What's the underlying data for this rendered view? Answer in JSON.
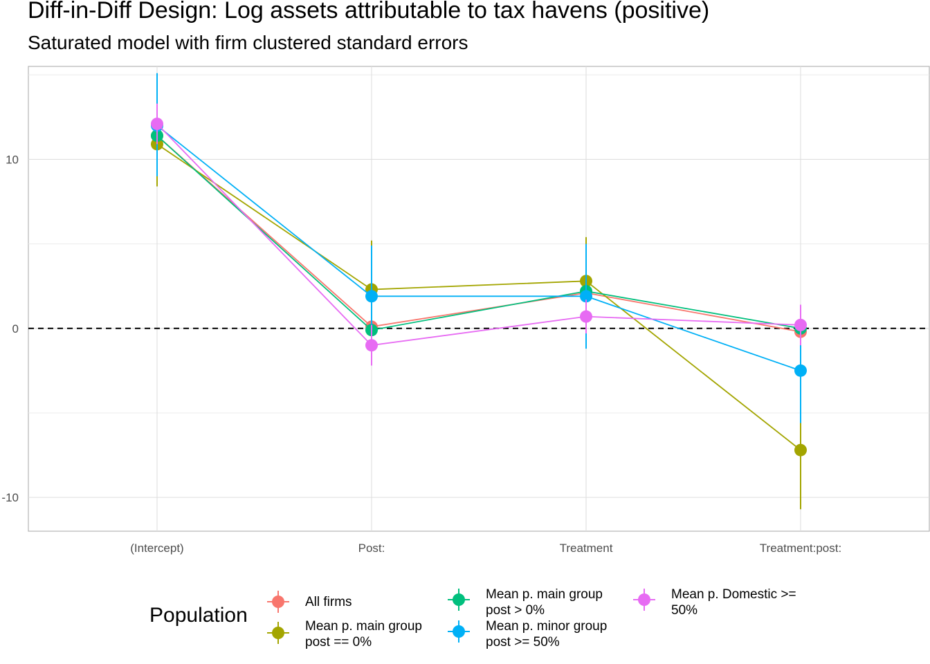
{
  "chart_data": {
    "type": "scatter",
    "title": "Diff-in-Diff Design: Log assets attributable to tax havens (positive)",
    "subtitle": "Saturated model with firm clustered standard errors",
    "xlabel": "",
    "ylabel": "",
    "categories": [
      "(Intercept)",
      "Post:",
      "Treatment",
      "Treatment:post:"
    ],
    "y_ticks": [
      -10,
      0,
      10
    ],
    "ylim": [
      -12,
      15.5
    ],
    "grid": true,
    "reference_line": {
      "y": 0,
      "style": "dashed"
    },
    "legend": {
      "title": "Population",
      "placement": "bottom"
    },
    "series": [
      {
        "name": "All firms",
        "color": "#F8766D",
        "values": [
          11.4,
          0.1,
          2.1,
          -0.2
        ],
        "lower": [
          9.0,
          -1.0,
          1.0,
          -1.0
        ],
        "upper": [
          13.8,
          1.2,
          3.2,
          0.6
        ]
      },
      {
        "name": "Mean p. main group post == 0%",
        "color": "#A3A500",
        "values": [
          10.9,
          2.3,
          2.8,
          -7.2
        ],
        "lower": [
          8.4,
          -0.6,
          0.2,
          -10.7
        ],
        "upper": [
          13.4,
          5.2,
          5.4,
          -3.7
        ]
      },
      {
        "name": "Mean p. main group post > 0%",
        "color": "#00BF7D",
        "values": [
          11.4,
          -0.1,
          2.2,
          0.0
        ],
        "lower": [
          9.2,
          -0.9,
          1.2,
          -0.8
        ],
        "upper": [
          13.6,
          0.7,
          3.2,
          0.8
        ]
      },
      {
        "name": "Mean p. minor group post >= 50%",
        "color": "#00B0F6",
        "values": [
          12.0,
          1.9,
          1.9,
          -2.5
        ],
        "lower": [
          9.0,
          -1.1,
          -1.2,
          -5.6
        ],
        "upper": [
          15.1,
          4.9,
          5.0,
          0.6
        ]
      },
      {
        "name": "Mean p. Domestic >= 50%",
        "color": "#E76BF3",
        "values": [
          12.1,
          -1.0,
          0.7,
          0.2
        ],
        "lower": [
          10.9,
          -2.2,
          -0.3,
          -1.0
        ],
        "upper": [
          13.3,
          0.2,
          1.7,
          1.4
        ]
      }
    ]
  }
}
